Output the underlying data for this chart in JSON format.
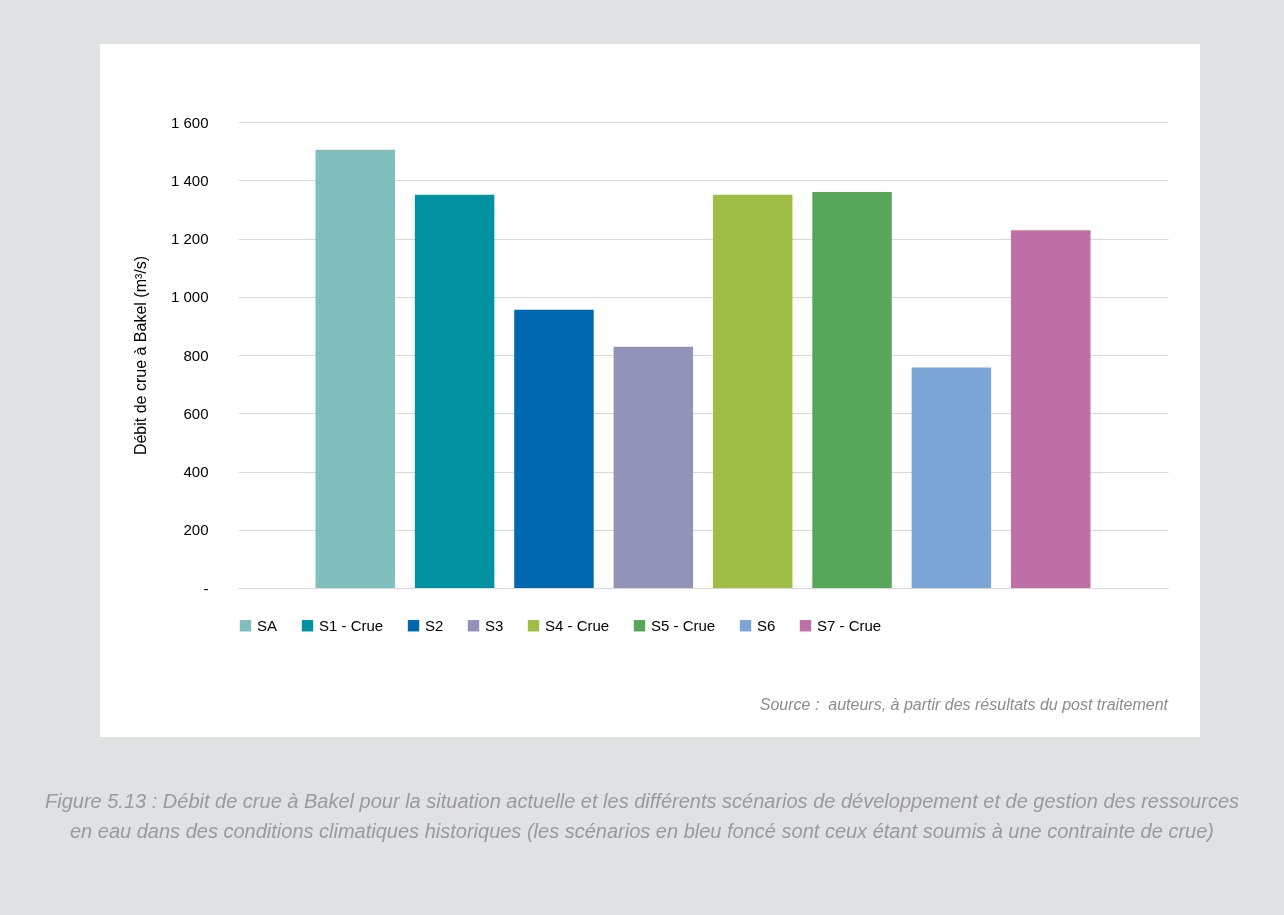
{
  "chart_data": {
    "type": "bar",
    "categories": [
      null
    ],
    "series": [
      {
        "name": "SA",
        "color": "#7fbfbd",
        "values": [
          1505
        ]
      },
      {
        "name": "S1 - Crue",
        "color": "#0092a1",
        "values": [
          1350
        ]
      },
      {
        "name": "S2",
        "color": "#0068b0",
        "values": [
          955
        ]
      },
      {
        "name": "S3",
        "color": "#9193b8",
        "values": [
          828
        ]
      },
      {
        "name": "S4 - Crue",
        "color": "#9dbd44",
        "values": [
          1350
        ]
      },
      {
        "name": "S5 - Crue",
        "color": "#57a75b",
        "values": [
          1360
        ]
      },
      {
        "name": "S6",
        "color": "#7ba5d6",
        "values": [
          757
        ]
      },
      {
        "name": "S7 - Crue",
        "color": "#bf70a6",
        "values": [
          1228
        ]
      }
    ],
    "ylabel": "Débit de crue à Bakel (m³/s)",
    "ylim": [
      0,
      1600
    ],
    "yticks": [
      {
        "value": 0,
        "label": "-"
      },
      200,
      400,
      600,
      800,
      {
        "value": 1000,
        "label": "1 000"
      },
      {
        "value": 1200,
        "label": "1 200"
      },
      {
        "value": 1400,
        "label": "1 400"
      },
      {
        "value": 1600,
        "label": "1 600"
      }
    ],
    "grid": "y",
    "legend": "bottom",
    "annotations": [
      "Source :  auteurs, à partir des résultats du post traitement",
      "Figure 5.13 : Débit de crue à Bakel pour la situation actuelle et les différents scénarios de développement et de gestion des ressources en eau dans des conditions climatiques historiques (les scénarios en bleu foncé sont ceux étant soumis à une contrainte de crue)"
    ]
  }
}
